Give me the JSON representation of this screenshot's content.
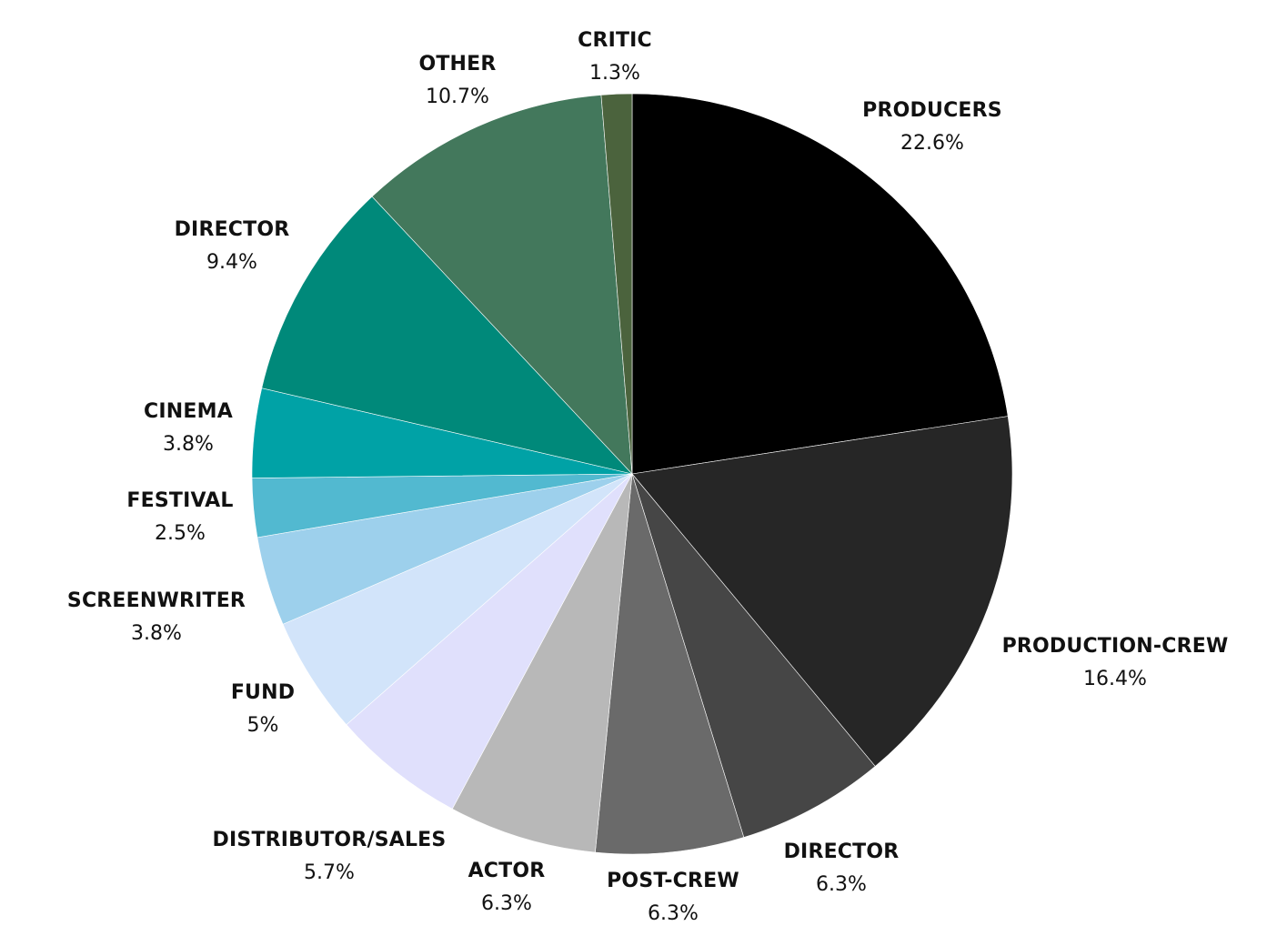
{
  "chart_data": {
    "type": "pie",
    "start": "12 o'clock",
    "direction": "clockwise",
    "legend": "none",
    "slices": [
      {
        "label": "PRODUCERS",
        "value": 22.6,
        "value_label": "22.6%",
        "color": "#000000"
      },
      {
        "label": "PRODUCTION-CREW",
        "value": 16.4,
        "value_label": "16.4%",
        "color": "#262626"
      },
      {
        "label": "DIRECTOR",
        "value": 6.3,
        "value_label": "6.3%",
        "color": "#464646"
      },
      {
        "label": "POST-CREW",
        "value": 6.3,
        "value_label": "6.3%",
        "color": "#6a6a6a"
      },
      {
        "label": "ACTOR",
        "value": 6.3,
        "value_label": "6.3%",
        "color": "#b8b8b8"
      },
      {
        "label": "DISTRIBUTOR/SALES",
        "value": 5.7,
        "value_label": "5.7%",
        "color": "#e0e0fc"
      },
      {
        "label": "FUND",
        "value": 5,
        "value_label": "5%",
        "color": "#d2e4fa"
      },
      {
        "label": "SCREENWRITER",
        "value": 3.8,
        "value_label": "3.8%",
        "color": "#9dd0ec"
      },
      {
        "label": "FESTIVAL",
        "value": 2.5,
        "value_label": "2.5%",
        "color": "#52b9d0"
      },
      {
        "label": "CINEMA",
        "value": 3.8,
        "value_label": "3.8%",
        "color": "#00a2a6"
      },
      {
        "label": "DIRECTOR",
        "value": 9.4,
        "value_label": "9.4%",
        "color": "#00897a"
      },
      {
        "label": "OTHER",
        "value": 10.7,
        "value_label": "10.7%",
        "color": "#43785c"
      },
      {
        "label": "CRITIC",
        "value": 1.3,
        "value_label": "1.3%",
        "color": "#4b633d"
      }
    ]
  }
}
